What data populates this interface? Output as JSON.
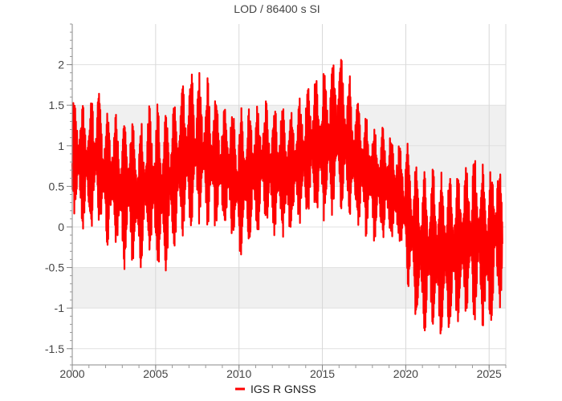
{
  "chart_data": {
    "type": "line",
    "title": "LOD / 86400 s SI",
    "xlabel": "",
    "ylabel": "",
    "xlim": [
      2000.0,
      2026.0
    ],
    "ylim": [
      -1.7,
      2.5
    ],
    "grid": true,
    "banded_y_intervals": [
      [
        0.5,
        1.0
      ],
      [
        -1.0,
        -0.5
      ],
      [
        1.0,
        1.5
      ]
    ],
    "x_ticks": [
      2000,
      2005,
      2010,
      2015,
      2020,
      2025
    ],
    "y_ticks": [
      -1.5,
      -1,
      -0.5,
      0,
      0.5,
      1,
      1.5,
      2
    ],
    "legend_position": "bottom-center",
    "series": [
      {
        "name": "IGS R GNSS",
        "color": "#ff0000",
        "x": [
          2000.0,
          2000.5,
          2001.0,
          2001.5,
          2002.0,
          2002.5,
          2003.0,
          2003.5,
          2004.0,
          2004.5,
          2005.0,
          2005.5,
          2006.0,
          2006.5,
          2007.0,
          2007.5,
          2008.0,
          2008.5,
          2009.0,
          2009.5,
          2010.0,
          2010.5,
          2011.0,
          2011.5,
          2012.0,
          2012.5,
          2013.0,
          2013.5,
          2014.0,
          2014.5,
          2015.0,
          2015.5,
          2016.0,
          2016.5,
          2017.0,
          2017.5,
          2018.0,
          2018.5,
          2019.0,
          2019.5,
          2020.0,
          2020.5,
          2021.0,
          2021.5,
          2022.0,
          2022.5,
          2023.0,
          2023.5,
          2024.0,
          2024.5,
          2025.0,
          2025.5,
          2025.8
        ],
        "y": [
          0.9,
          0.8,
          0.7,
          0.9,
          0.6,
          0.6,
          0.4,
          0.5,
          0.3,
          0.6,
          0.5,
          0.4,
          0.6,
          0.8,
          0.9,
          1.0,
          0.9,
          0.8,
          0.7,
          0.7,
          0.5,
          0.6,
          0.7,
          0.8,
          0.7,
          0.7,
          0.6,
          0.8,
          0.9,
          1.0,
          1.0,
          1.1,
          1.2,
          1.0,
          0.8,
          0.7,
          0.6,
          0.5,
          0.5,
          0.4,
          0.2,
          -0.1,
          -0.3,
          -0.3,
          -0.4,
          -0.3,
          -0.3,
          -0.2,
          -0.1,
          -0.2,
          -0.3,
          0.0,
          -0.2
        ],
        "amplitude": [
          0.6,
          0.6,
          0.7,
          0.7,
          0.7,
          0.7,
          0.8,
          0.8,
          0.8,
          0.8,
          0.9,
          0.9,
          0.8,
          0.8,
          0.9,
          0.8,
          0.8,
          0.8,
          0.7,
          0.7,
          0.8,
          0.8,
          0.7,
          0.7,
          0.7,
          0.7,
          0.7,
          0.7,
          0.7,
          0.8,
          0.8,
          0.9,
          0.9,
          0.8,
          0.7,
          0.7,
          0.6,
          0.6,
          0.6,
          0.6,
          0.7,
          0.9,
          0.9,
          0.9,
          0.9,
          0.9,
          0.9,
          0.9,
          0.9,
          0.9,
          0.9,
          0.8,
          0.7
        ]
      }
    ]
  }
}
